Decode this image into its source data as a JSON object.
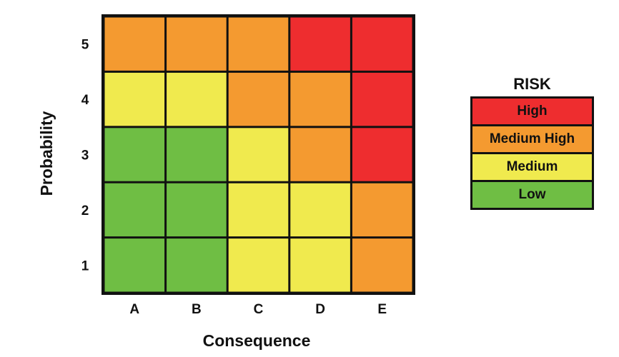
{
  "chart_data": {
    "type": "heatmap",
    "xlabel": "Consequence",
    "ylabel": "Probability",
    "x_categories": [
      "A",
      "B",
      "C",
      "D",
      "E"
    ],
    "y_categories": [
      "1",
      "2",
      "3",
      "4",
      "5"
    ],
    "cells": [
      [
        "Low",
        "Low",
        "Medium",
        "Medium",
        "Medium High"
      ],
      [
        "Low",
        "Low",
        "Medium",
        "Medium",
        "Medium High"
      ],
      [
        "Low",
        "Low",
        "Medium",
        "Medium High",
        "High"
      ],
      [
        "Medium",
        "Medium",
        "Medium High",
        "Medium High",
        "High"
      ],
      [
        "Medium High",
        "Medium High",
        "Medium High",
        "High",
        "High"
      ]
    ],
    "legend": {
      "title": "RISK",
      "position": "right",
      "levels": [
        {
          "label": "High",
          "color": "#ee2d2f"
        },
        {
          "label": "Medium High",
          "color": "#f49a30"
        },
        {
          "label": "Medium",
          "color": "#f0ea4e"
        },
        {
          "label": "Low",
          "color": "#6fbe44"
        }
      ]
    }
  }
}
